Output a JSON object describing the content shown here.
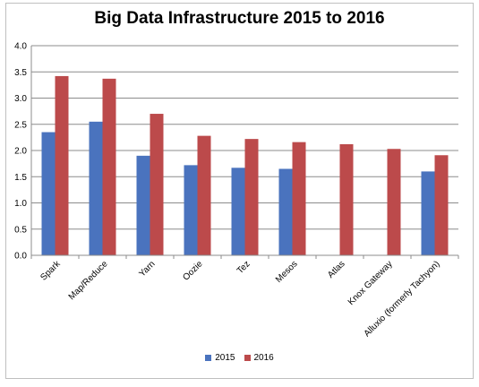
{
  "chart_data": {
    "type": "bar",
    "title": "Big Data Infrastructure 2015 to 2016",
    "categories": [
      "Spark",
      "Map/Reduce",
      "Yarn",
      "Oozie",
      "Tez",
      "Mesos",
      "Atlas",
      "Knox Gateway",
      "Alluxio (formerly Tachyon)"
    ],
    "series": [
      {
        "name": "2015",
        "color": "#4a73be",
        "values": [
          2.35,
          2.55,
          1.9,
          1.72,
          1.67,
          1.65,
          null,
          null,
          1.6
        ]
      },
      {
        "name": "2016",
        "color": "#bc4a4b",
        "values": [
          3.42,
          3.37,
          2.7,
          2.28,
          2.22,
          2.16,
          2.12,
          2.03,
          1.91
        ]
      }
    ],
    "ylim": [
      0,
      4
    ],
    "yticks": [
      "0.0",
      "0.5",
      "1.0",
      "1.5",
      "2.0",
      "2.5",
      "3.0",
      "3.5",
      "4.0"
    ],
    "grid": true,
    "legend_position": "bottom"
  }
}
